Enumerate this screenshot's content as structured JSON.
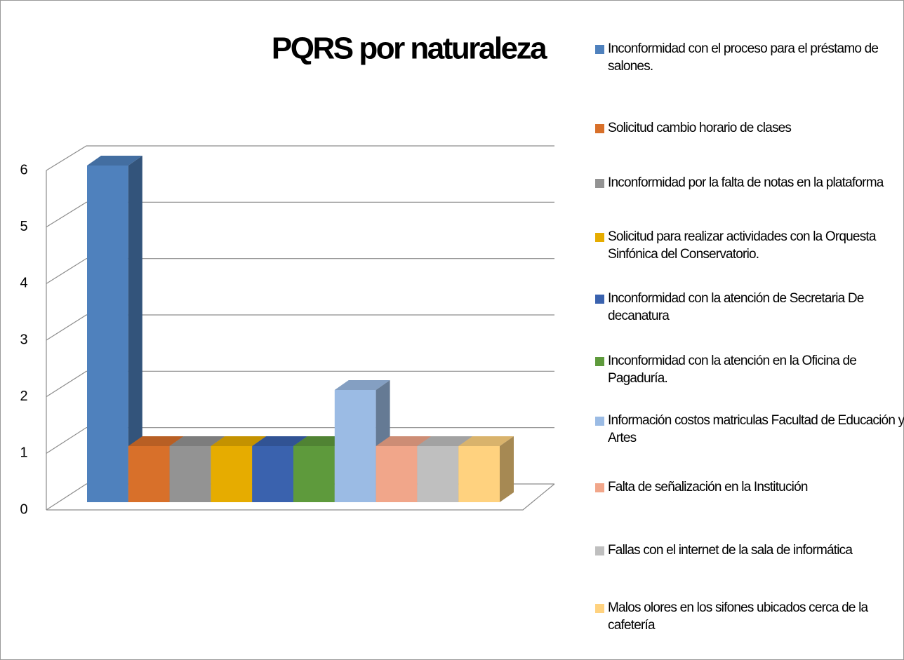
{
  "chart_data": {
    "type": "bar3d",
    "title": "PQRS por naturaleza",
    "series": [
      {
        "name": "Inconformidad con el proceso para el préstamo de salones.",
        "color": "#4f81bd",
        "values": [
          6
        ]
      },
      {
        "name": "Solicitud cambio horario de clases",
        "color": "#d8702a",
        "values": [
          1
        ]
      },
      {
        "name": "Inconformidad por la falta de  notas en la plataforma",
        "color": "#939393",
        "values": [
          1
        ]
      },
      {
        "name": "Solicitud para realizar actividades con la Orquesta Sinfónica  del Conservatorio.",
        "color": "#e6ac00",
        "values": [
          1
        ]
      },
      {
        "name": "Inconformidad con la atención de Secretaria De decanatura",
        "color": "#3a62ae",
        "values": [
          1
        ]
      },
      {
        "name": "Inconformidad con la atención en la Oficina de Pagaduría.",
        "color": "#5e9a3c",
        "values": [
          1
        ]
      },
      {
        "name": "Información costos matriculas Facultad de Educación y Artes",
        "color": "#9bbbe4",
        "values": [
          2
        ]
      },
      {
        "name": "Falta de señalización en la Institución",
        "color": "#f1a68a",
        "values": [
          1
        ]
      },
      {
        "name": "Fallas con el internet de la sala de informática",
        "color": "#bfbfbf",
        "values": [
          1
        ]
      },
      {
        "name": "Malos olores en los sifones ubicados cerca de la cafetería",
        "color": "#ffd27f",
        "values": [
          1
        ]
      }
    ],
    "ylim": [
      0,
      6
    ],
    "yticks": [
      0,
      1,
      2,
      3,
      4,
      5,
      6
    ],
    "grid": true
  }
}
